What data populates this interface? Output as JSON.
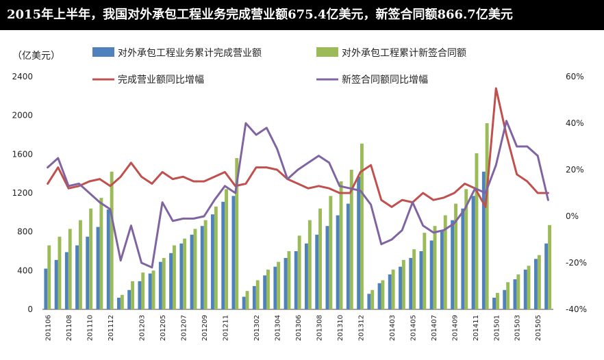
{
  "title": "2015年上半年，我国对外承包工程业务完成营业额675.4亿美元，新签合同额866.7亿美元",
  "chart_data": {
    "type": "bar",
    "unit_left": "（亿美元）",
    "categories": [
      "201106",
      "201107",
      "201108",
      "201109",
      "201110",
      "201111",
      "201112",
      "201201",
      "201202",
      "201203",
      "201204",
      "201205",
      "201206",
      "201207",
      "201208",
      "201209",
      "201210",
      "201211",
      "201212",
      "201301",
      "201302",
      "201303",
      "201304",
      "201305",
      "201306",
      "201307",
      "201308",
      "201309",
      "201310",
      "201311",
      "201312",
      "201401",
      "201402",
      "201403",
      "201404",
      "201405",
      "201406",
      "201407",
      "201408",
      "201409",
      "201410",
      "201411",
      "201412",
      "201501",
      "201502",
      "201503",
      "201504",
      "201505",
      "201506"
    ],
    "xtick_labels": [
      "201106",
      "201108",
      "201110",
      "201112",
      "201203",
      "201205",
      "201207",
      "201209",
      "201211",
      "201302",
      "201304",
      "201306",
      "201308",
      "201310",
      "201312",
      "201403",
      "201405",
      "201407",
      "201409",
      "201411",
      "201501",
      "201503",
      "201505"
    ],
    "left_axis": {
      "min": 0,
      "max": 2400,
      "ticks": [
        "0",
        "400",
        "800",
        "1200",
        "1600",
        "2000",
        "2400"
      ]
    },
    "right_axis": {
      "min": -40,
      "max": 60,
      "ticks": [
        "-40%",
        "-20%",
        "0%",
        "20%",
        "40%",
        "60%"
      ]
    },
    "series": [
      {
        "name": "对外承包工程业务累计完成营业额",
        "type": "bar",
        "axis": "left",
        "color": "#4f81bd",
        "values": [
          420,
          510,
          590,
          660,
          750,
          850,
          1030,
          120,
          200,
          290,
          370,
          490,
          580,
          680,
          770,
          860,
          980,
          1110,
          1170,
          130,
          240,
          350,
          440,
          530,
          600,
          680,
          770,
          860,
          970,
          1090,
          1370,
          160,
          270,
          360,
          440,
          530,
          600,
          710,
          810,
          920,
          1040,
          1170,
          1420,
          120,
          200,
          310,
          410,
          520,
          680
        ]
      },
      {
        "name": "对外承包工程累计新签合同额",
        "type": "bar",
        "axis": "left",
        "color": "#9bbb59",
        "values": [
          660,
          750,
          830,
          920,
          1040,
          1150,
          1420,
          150,
          290,
          380,
          400,
          530,
          660,
          730,
          830,
          920,
          1060,
          1240,
          1560,
          190,
          300,
          410,
          490,
          600,
          760,
          920,
          1040,
          1170,
          1320,
          1440,
          1710,
          200,
          300,
          410,
          510,
          620,
          790,
          860,
          970,
          1090,
          1240,
          1610,
          1920,
          170,
          280,
          360,
          450,
          560,
          870
        ]
      },
      {
        "name": "完成营业额同比增幅",
        "type": "line",
        "axis": "right",
        "color": "#c0504d",
        "values": [
          14,
          21,
          12,
          13,
          15,
          16,
          13,
          17,
          23,
          17,
          14,
          19,
          16,
          17,
          15,
          15,
          17,
          19,
          13,
          14,
          21,
          21,
          20,
          16,
          14,
          12,
          13,
          12,
          10,
          10,
          19,
          22,
          7,
          4,
          7,
          6,
          10,
          7,
          8,
          10,
          14,
          12,
          4,
          55,
          35,
          18,
          15,
          10,
          10
        ]
      },
      {
        "name": "新签合同额同比增幅",
        "type": "line",
        "axis": "right",
        "color": "#8064a2",
        "values": [
          21,
          25,
          13,
          14,
          10,
          6,
          3,
          -19,
          -4,
          -20,
          -22,
          6,
          -2,
          -1,
          -1,
          0,
          7,
          13,
          10,
          40,
          35,
          38,
          29,
          16,
          20,
          23,
          26,
          23,
          13,
          12,
          11,
          5,
          -12,
          -10,
          -6,
          6,
          -4,
          -7,
          -6,
          -3,
          3,
          12,
          10,
          22,
          41,
          30,
          30,
          26,
          7
        ]
      }
    ]
  }
}
